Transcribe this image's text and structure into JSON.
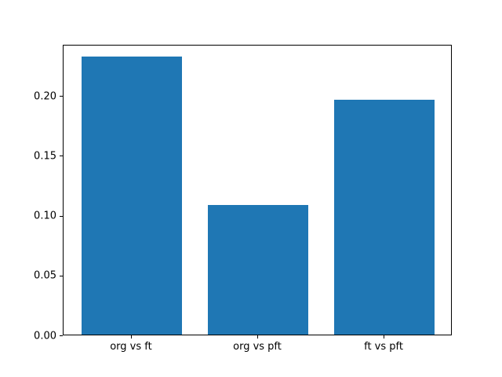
{
  "chart_data": {
    "type": "bar",
    "title": "",
    "xlabel": "",
    "ylabel": "",
    "categories": [
      "org vs ft",
      "org vs pft",
      "ft vs pft"
    ],
    "values": [
      0.232,
      0.108,
      0.196
    ],
    "ylim": [
      0,
      0.2427
    ],
    "yticks": [
      0.0,
      0.05,
      0.1,
      0.15,
      0.2
    ],
    "ytick_labels": [
      "0.00",
      "0.05",
      "0.10",
      "0.15",
      "0.20"
    ],
    "bar_color": "#1f77b4",
    "bar_width_fraction": 0.8,
    "axes_color": "#000000",
    "background_color": "#ffffff",
    "grid": false,
    "legend": null
  }
}
